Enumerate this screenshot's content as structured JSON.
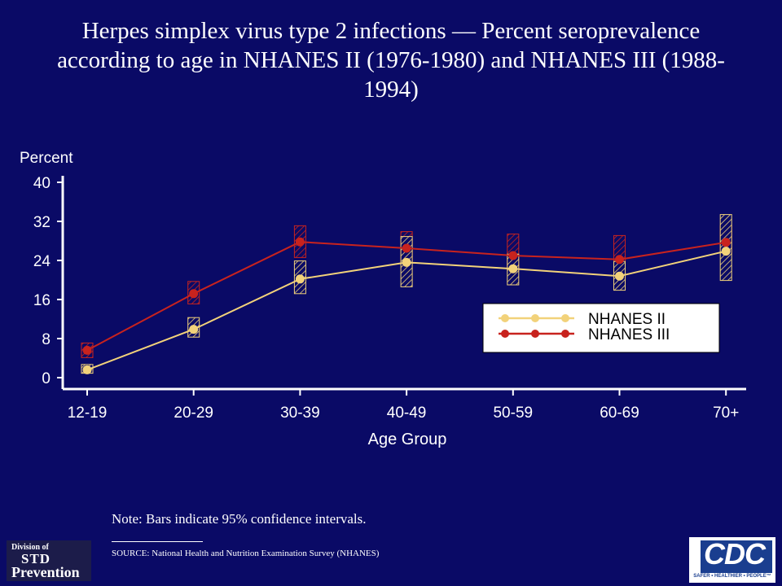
{
  "title": "Herpes simplex virus type 2 infections — Percent seroprevalence according to age in NHANES II (1976-1980) and NHANES III (1988-1994)",
  "note": "Note: Bars indicate 95% confidence intervals.",
  "source": "SOURCE: National Health and Nutrition Examination Survey (NHANES)",
  "logos": {
    "left": {
      "line1": "Division of",
      "line2": "STD",
      "line3": "Prevention"
    },
    "right": {
      "text": "CDC",
      "tagline": "SAFER • HEALTHIER • PEOPLE™"
    }
  },
  "colors": {
    "background": "#0a0a66",
    "axis": "#ffffff",
    "nhanes2": "#f2d27a",
    "nhanes3": "#c8231e",
    "legend_bg": "#ffffff"
  },
  "chart_data": {
    "type": "line",
    "title": "",
    "xlabel": "Age Group",
    "ylabel": "Percent",
    "categories": [
      "12-19",
      "20-29",
      "30-39",
      "40-49",
      "50-59",
      "60-69",
      "70+"
    ],
    "yticks": [
      0,
      8,
      16,
      24,
      32,
      40
    ],
    "ylim": [
      0,
      40
    ],
    "grid": false,
    "legend_position": "right",
    "series": [
      {
        "name": "NHANES II",
        "values": [
          1.6,
          9.9,
          20.2,
          23.6,
          22.3,
          20.8,
          25.9
        ],
        "ci_low": [
          0.9,
          8.3,
          17.2,
          18.6,
          19.0,
          17.9,
          19.9
        ],
        "ci_high": [
          2.7,
          12.3,
          23.9,
          28.9,
          25.3,
          23.8,
          33.4
        ]
      },
      {
        "name": "NHANES III",
        "values": [
          5.6,
          17.2,
          27.8,
          26.5,
          25.0,
          24.2,
          27.7
        ],
        "ci_low": [
          4.1,
          15.1,
          24.6,
          23.4,
          21.8,
          20.6,
          25.4
        ],
        "ci_high": [
          7.1,
          19.7,
          31.1,
          29.9,
          29.4,
          29.1,
          31.1
        ]
      }
    ]
  }
}
